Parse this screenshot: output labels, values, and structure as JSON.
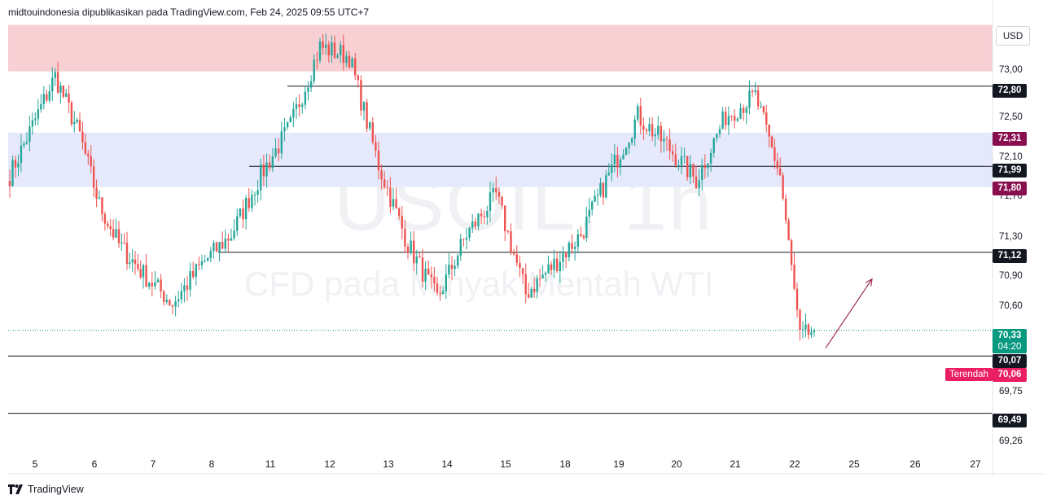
{
  "header": {
    "text": "midtouindonesia dipublikasikan pada TradingView.com, Feb 24, 2025 09:55 UTC+7"
  },
  "watermark": {
    "symbol": "USOIL, 1h",
    "description": "CFD pada Minyak Mentah WTI"
  },
  "currency": "USD",
  "footer": {
    "brand": "TradingView"
  },
  "colors": {
    "up": "#26a69a",
    "down": "#ef5350",
    "resistance_zone": "#f8d0d4",
    "blue_zone": "#e6e9fb",
    "line": "#131722",
    "current": "#089981",
    "level_maroon": "#880e4f",
    "low_badge": "#e91e63"
  },
  "price_axis": [
    "73,00",
    "72,50",
    "72,10",
    "71,70",
    "71,30",
    "70,90",
    "70,60",
    "69,75",
    "69,26"
  ],
  "date_axis": [
    "5",
    "6",
    "7",
    "8",
    "11",
    "12",
    "13",
    "14",
    "15",
    "18",
    "19",
    "20",
    "21",
    "22",
    "25",
    "26",
    "27"
  ],
  "levels": {
    "l7280": "72,80",
    "l7231": "72,31",
    "l7199": "71,99",
    "l7180": "71,80",
    "l7112": "71,12",
    "l7007": "70,07",
    "l6949": "69,49"
  },
  "current_price": {
    "price": "70,33",
    "countdown": "04:20"
  },
  "low": {
    "label": "Terendah",
    "price": "70,06"
  },
  "chart_data": {
    "type": "candlestick",
    "symbol": "USOIL",
    "timeframe": "1h",
    "currency": "USD",
    "ylim": [
      69.1,
      73.45
    ],
    "zones": [
      {
        "from": 72.95,
        "to": 73.42,
        "color": "#f8d0d4"
      },
      {
        "from": 71.78,
        "to": 72.33,
        "color": "#e6e9fb"
      }
    ],
    "horizontal_lines": [
      72.8,
      71.99,
      71.12,
      70.07,
      69.49
    ],
    "anchors": [
      [
        "5",
        71.9
      ],
      [
        "5",
        72.9
      ],
      [
        "6",
        72.3
      ],
      [
        "6",
        71.6
      ],
      [
        "6",
        71.2
      ],
      [
        "7",
        70.9
      ],
      [
        "7",
        70.6
      ],
      [
        "8",
        71.0
      ],
      [
        "8",
        71.3
      ],
      [
        "11",
        71.9
      ],
      [
        "11",
        72.4
      ],
      [
        "12",
        73.2
      ],
      [
        "12",
        73.1
      ],
      [
        "13",
        72.0
      ],
      [
        "13",
        71.2
      ],
      [
        "14",
        70.65
      ],
      [
        "14",
        71.3
      ],
      [
        "15",
        71.7
      ],
      [
        "15",
        70.7
      ],
      [
        "18",
        71.0
      ],
      [
        "18",
        71.3
      ],
      [
        "19",
        71.9
      ],
      [
        "19",
        72.5
      ],
      [
        "20",
        72.2
      ],
      [
        "20",
        71.85
      ],
      [
        "21",
        72.5
      ],
      [
        "21",
        72.7
      ],
      [
        "22",
        71.9
      ],
      [
        "22",
        70.25
      ],
      [
        "22",
        70.33
      ]
    ],
    "last_close": 70.33,
    "low": 70.06,
    "arrow": {
      "from": [
        "22",
        70.15
      ],
      "to": [
        "25",
        70.85
      ],
      "color": "#a0305a"
    }
  }
}
